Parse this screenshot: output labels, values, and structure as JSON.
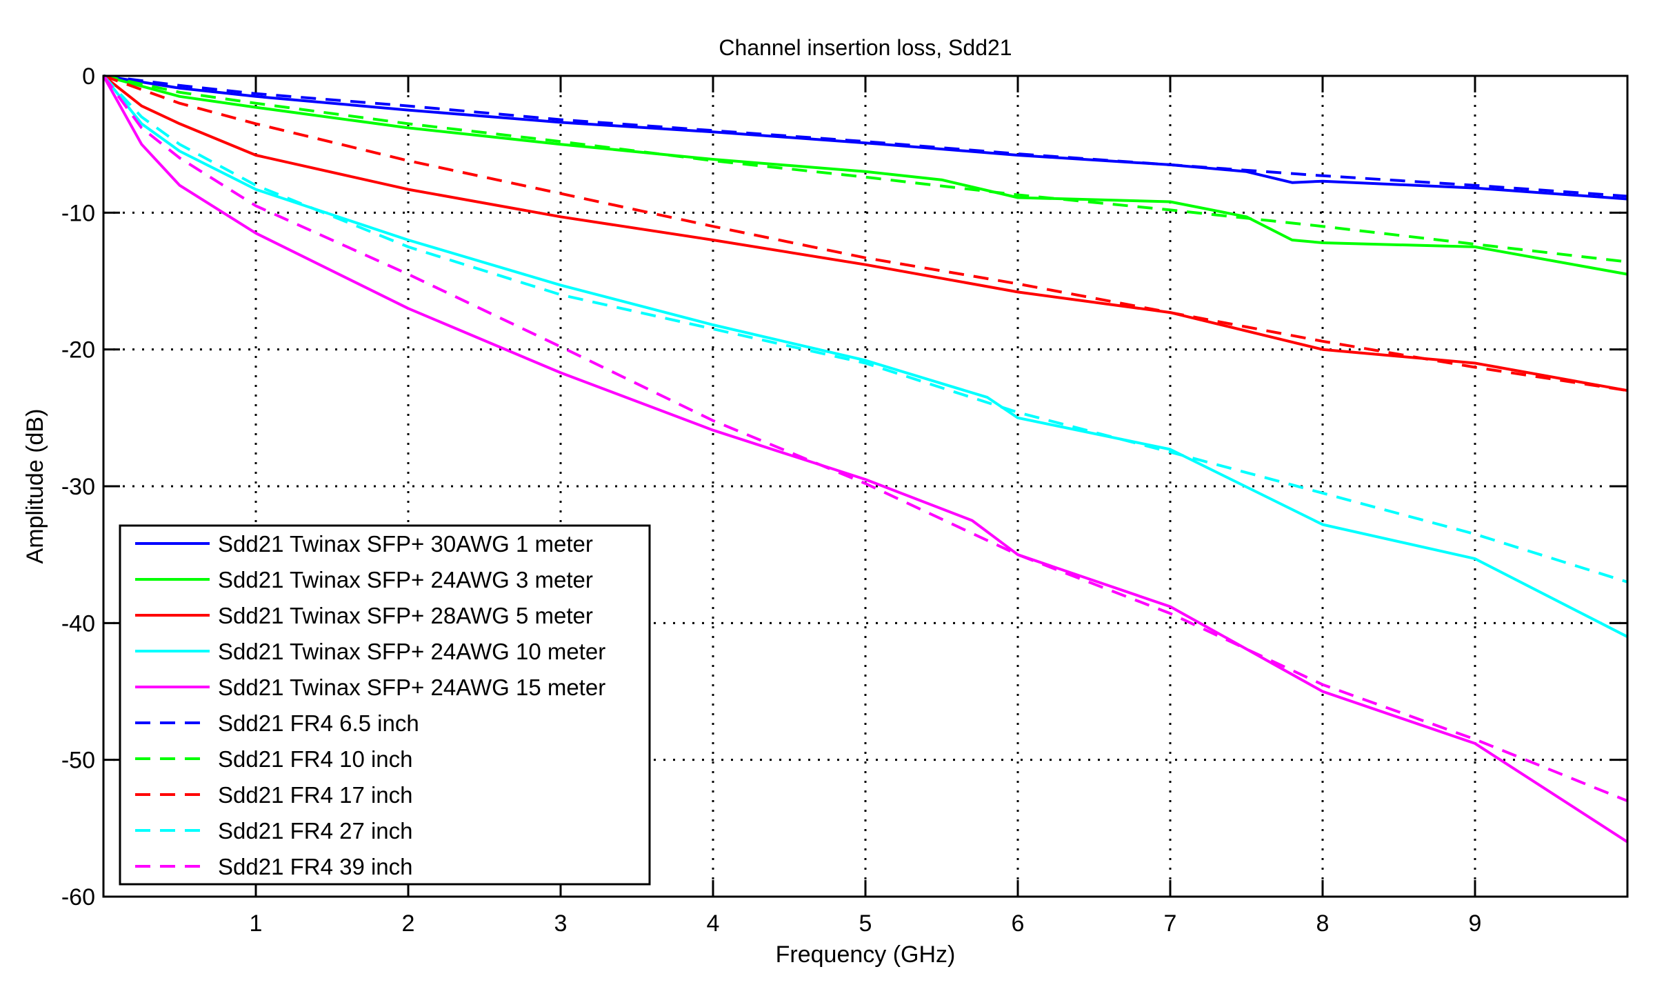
{
  "chart_data": {
    "type": "line",
    "title": "Channel insertion loss, Sdd21",
    "xlabel": "Frequency (GHz)",
    "ylabel": "Amplitude (dB)",
    "xlim": [
      0,
      10
    ],
    "ylim": [
      -60,
      0
    ],
    "xticks": [
      1,
      2,
      3,
      4,
      5,
      6,
      7,
      8,
      9
    ],
    "yticks": [
      0,
      -10,
      -20,
      -30,
      -40,
      -50,
      -60
    ],
    "grid": true,
    "legend_position": "bottom-left",
    "series": [
      {
        "name": "Sdd21 Twinax SFP+ 30AWG 1 meter",
        "color": "#0000ff",
        "style": "solid",
        "x": [
          0,
          0.5,
          1,
          2,
          3,
          4,
          5,
          6,
          7,
          7.5,
          7.8,
          8,
          9,
          10
        ],
        "y": [
          0,
          -0.9,
          -1.5,
          -2.5,
          -3.4,
          -4.1,
          -4.9,
          -5.8,
          -6.5,
          -7.0,
          -7.8,
          -7.7,
          -8.2,
          -9.0
        ]
      },
      {
        "name": "Sdd21 Twinax SFP+ 24AWG 3 meter",
        "color": "#00ff00",
        "style": "solid",
        "x": [
          0,
          0.5,
          1,
          2,
          3,
          4,
          5,
          5.5,
          6,
          7,
          7.5,
          7.8,
          8,
          9,
          10
        ],
        "y": [
          0,
          -1.5,
          -2.3,
          -3.8,
          -5.0,
          -6.1,
          -7.0,
          -7.6,
          -8.9,
          -9.2,
          -10.3,
          -12.0,
          -12.2,
          -12.5,
          -14.5
        ]
      },
      {
        "name": "Sdd21 Twinax SFP+ 28AWG 5 meter",
        "color": "#ff0000",
        "style": "solid",
        "x": [
          0,
          0.25,
          0.5,
          1,
          2,
          3,
          4,
          5,
          6,
          7,
          8,
          9,
          10
        ],
        "y": [
          0,
          -2.2,
          -3.5,
          -5.8,
          -8.3,
          -10.3,
          -12.0,
          -13.8,
          -15.8,
          -17.3,
          -20.0,
          -21.0,
          -23.0
        ]
      },
      {
        "name": "Sdd21 Twinax SFP+ 24AWG 10 meter",
        "color": "#00ffff",
        "style": "solid",
        "x": [
          0,
          0.25,
          0.5,
          1,
          2,
          3,
          4,
          5,
          5.8,
          6,
          7,
          8,
          9,
          10
        ],
        "y": [
          0,
          -3.5,
          -5.5,
          -8.3,
          -12.0,
          -15.3,
          -18.2,
          -20.8,
          -23.5,
          -25.0,
          -27.3,
          -32.8,
          -35.3,
          -41.0
        ]
      },
      {
        "name": "Sdd21 Twinax SFP+ 24AWG 15 meter",
        "color": "#ff00ff",
        "style": "solid",
        "x": [
          0,
          0.25,
          0.5,
          1,
          2,
          3,
          4,
          5,
          5.7,
          6,
          7,
          8,
          9,
          10
        ],
        "y": [
          0,
          -5.0,
          -8.0,
          -11.5,
          -17.0,
          -21.7,
          -25.9,
          -29.5,
          -32.5,
          -35.0,
          -38.8,
          -45.0,
          -48.8,
          -56.0
        ]
      },
      {
        "name": "Sdd21 FR4 6.5 inch",
        "color": "#0000ff",
        "style": "dashed",
        "x": [
          0,
          0.5,
          1,
          2,
          3,
          4,
          5,
          6,
          7,
          8,
          9,
          10
        ],
        "y": [
          0,
          -0.7,
          -1.3,
          -2.2,
          -3.2,
          -4.0,
          -4.8,
          -5.7,
          -6.5,
          -7.3,
          -8.0,
          -8.8
        ]
      },
      {
        "name": "Sdd21 FR4 10 inch",
        "color": "#00ff00",
        "style": "dashed",
        "x": [
          0,
          0.5,
          1,
          2,
          3,
          4,
          5,
          6,
          7,
          8,
          9,
          10
        ],
        "y": [
          0,
          -1.2,
          -2.0,
          -3.5,
          -4.8,
          -6.2,
          -7.4,
          -8.7,
          -9.8,
          -11.0,
          -12.3,
          -13.6
        ]
      },
      {
        "name": "Sdd21 FR4 17 inch",
        "color": "#ff0000",
        "style": "dashed",
        "x": [
          0,
          0.5,
          1,
          2,
          3,
          4,
          5,
          6,
          7,
          8,
          9,
          10
        ],
        "y": [
          0,
          -2.0,
          -3.5,
          -6.2,
          -8.6,
          -11.0,
          -13.3,
          -15.2,
          -17.3,
          -19.4,
          -21.3,
          -23.0
        ]
      },
      {
        "name": "Sdd21 FR4 27 inch",
        "color": "#00ffff",
        "style": "dashed",
        "x": [
          0,
          0.25,
          0.5,
          1,
          2,
          3,
          4,
          5,
          6,
          7,
          8,
          9,
          10
        ],
        "y": [
          0,
          -3.0,
          -5.0,
          -8.0,
          -12.5,
          -16.0,
          -18.5,
          -21.0,
          -24.6,
          -27.5,
          -30.5,
          -33.5,
          -37.0
        ]
      },
      {
        "name": "Sdd21 FR4 39 inch",
        "color": "#ff00ff",
        "style": "dashed",
        "x": [
          0,
          0.25,
          0.5,
          1,
          2,
          3,
          4,
          5,
          6,
          7,
          8,
          9,
          10
        ],
        "y": [
          0,
          -3.8,
          -6.0,
          -9.5,
          -14.5,
          -19.8,
          -25.2,
          -29.8,
          -35.0,
          -39.3,
          -44.5,
          -48.5,
          -53.0
        ]
      }
    ]
  }
}
